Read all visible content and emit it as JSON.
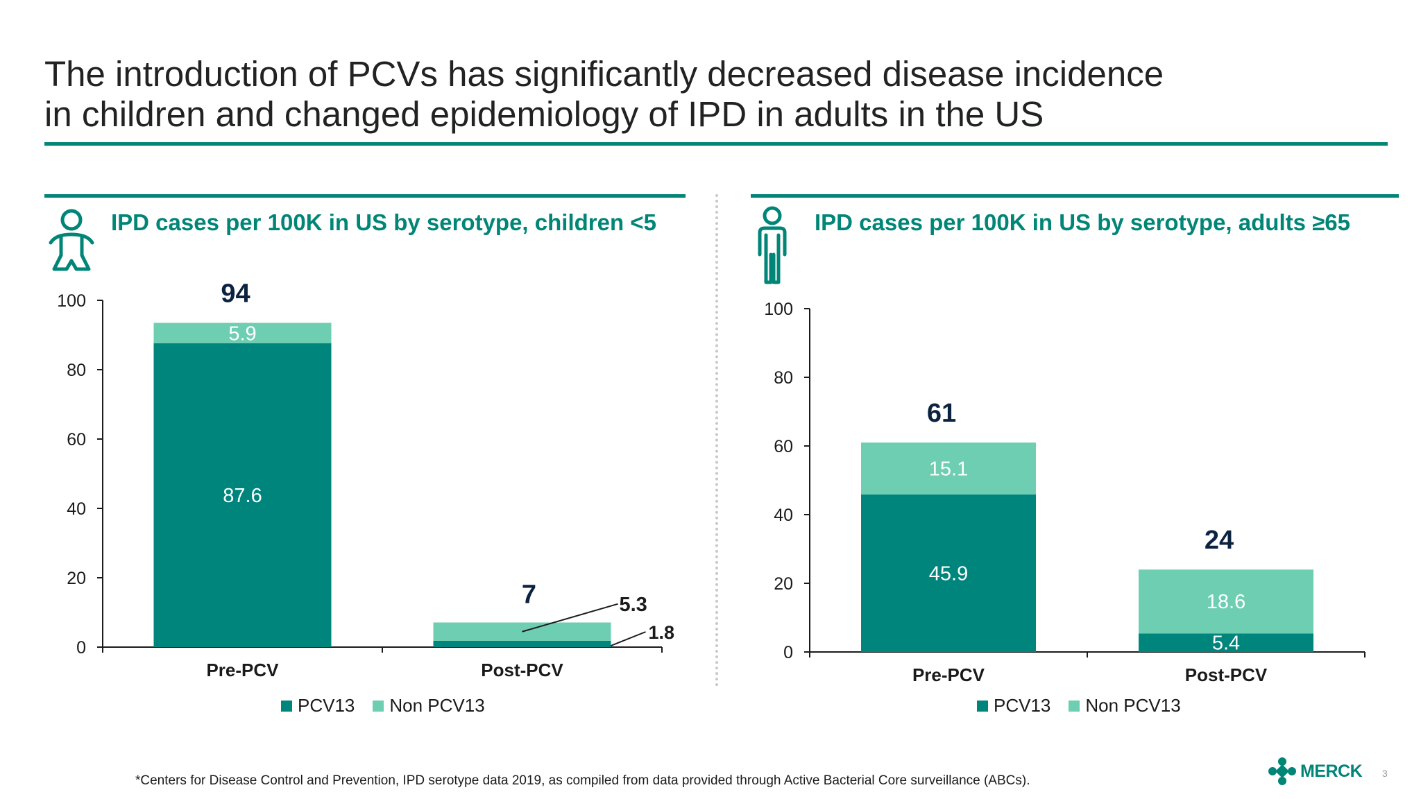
{
  "slide": {
    "title_line1": "The introduction of PCVs has significantly decreased disease incidence",
    "title_line2": "in children and changed epidemiology of IPD in adults in the US",
    "footnote": "*Centers for Disease Control and Prevention, IPD serotype data 2019, as compiled from data provided through Active Bacterial Core surveillance (ABCs).",
    "logo_text": "MERCK",
    "page_number": "3"
  },
  "colors": {
    "pcv13": "#00857C",
    "non_pcv13": "#6ECEB2",
    "accent": "#008577",
    "total_label": "#0C2340"
  },
  "icons": {
    "left_panel": "baby-icon",
    "right_panel": "adult-person-icon",
    "logo": "merck-logo-icon"
  },
  "chart_data": [
    {
      "type": "bar",
      "stacked": true,
      "title": "IPD cases per 100K in US by serotype, children <5",
      "categories": [
        "Pre-PCV",
        "Post-PCV"
      ],
      "series": [
        {
          "name": "PCV13",
          "values": [
            87.6,
            1.8
          ],
          "labels": [
            "87.6",
            "1.8"
          ]
        },
        {
          "name": "Non PCV13",
          "values": [
            5.9,
            5.3
          ],
          "labels": [
            "5.9",
            "5.3"
          ]
        }
      ],
      "totals": [
        "94",
        "7"
      ],
      "ylim": [
        0,
        100
      ],
      "yticks": [
        "0",
        "20",
        "40",
        "60",
        "80",
        "100"
      ],
      "legend": [
        "PCV13",
        "Non PCV13"
      ],
      "legend_position": "bottom-center",
      "grid": false
    },
    {
      "type": "bar",
      "stacked": true,
      "title": "IPD cases per 100K in US by serotype, adults ≥65",
      "categories": [
        "Pre-PCV",
        "Post-PCV"
      ],
      "series": [
        {
          "name": "PCV13",
          "values": [
            45.9,
            5.4
          ],
          "labels": [
            "45.9",
            "5.4"
          ]
        },
        {
          "name": "Non PCV13",
          "values": [
            15.1,
            18.6
          ],
          "labels": [
            "15.1",
            "18.6"
          ]
        }
      ],
      "totals": [
        "61",
        "24"
      ],
      "ylim": [
        0,
        100
      ],
      "yticks": [
        "0",
        "20",
        "40",
        "60",
        "80",
        "100"
      ],
      "legend": [
        "PCV13",
        "Non PCV13"
      ],
      "legend_position": "bottom-center",
      "grid": false
    }
  ]
}
